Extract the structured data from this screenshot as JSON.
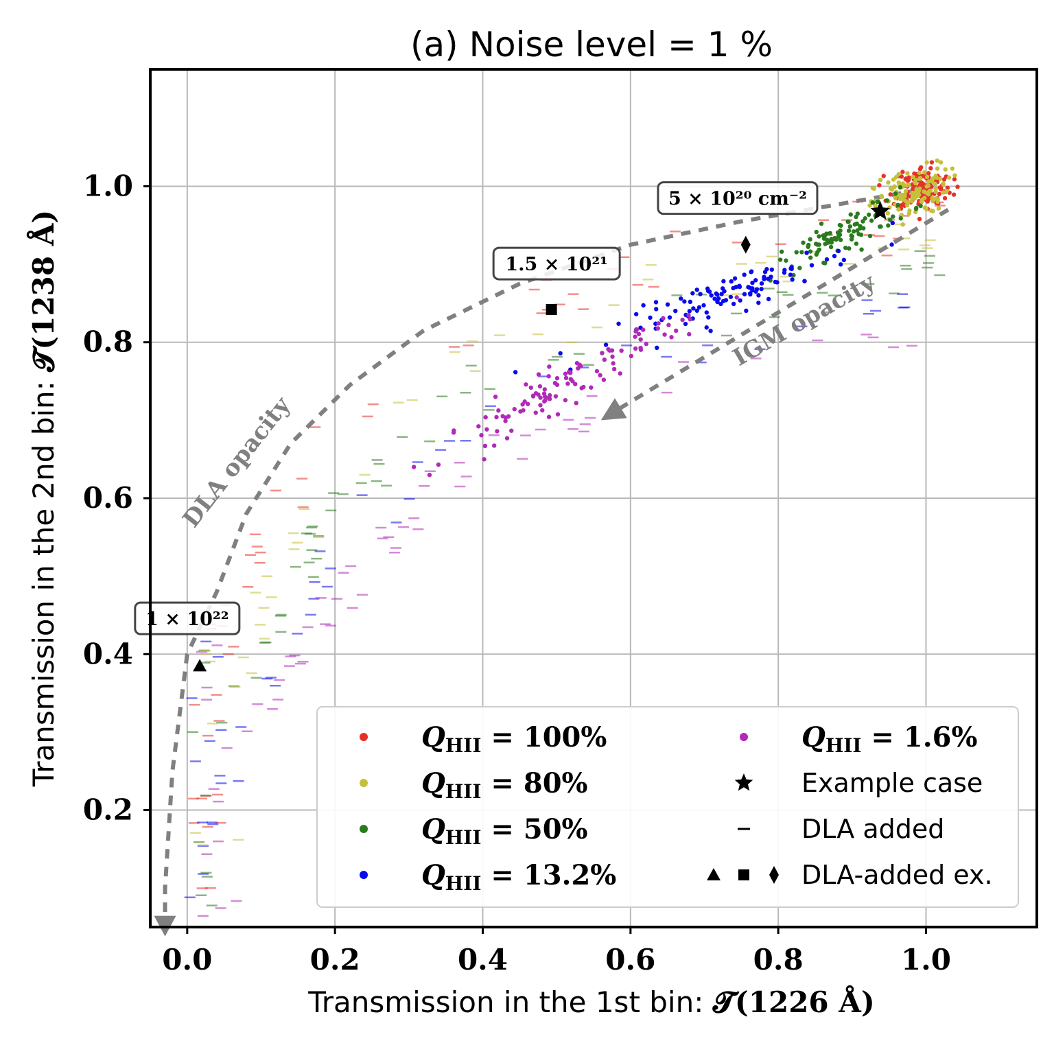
{
  "chart_data": {
    "type": "scatter",
    "title": "(a) Noise level = 1 %",
    "xlabel_text": "Transmission in the 1st bin: ",
    "xlabel_math": "𝓣(1226 Å)",
    "ylabel_text": "Transmission in the 2nd bin: ",
    "ylabel_math": "𝓣(1238 Å)",
    "xlim": [
      -0.05,
      1.15
    ],
    "ylim": [
      0.05,
      1.15
    ],
    "xticks": [
      0.0,
      0.2,
      0.4,
      0.6,
      0.8,
      1.0
    ],
    "xtick_labels": [
      "0.0",
      "0.2",
      "0.4",
      "0.6",
      "0.8",
      "1.0"
    ],
    "yticks": [
      0.2,
      0.4,
      0.6,
      0.8,
      1.0
    ],
    "ytick_labels": [
      "0.2",
      "0.4",
      "0.6",
      "0.8",
      "1.0"
    ],
    "grid": true,
    "legend_position": "lower-right",
    "legend": [
      {
        "marker": "dot",
        "label": "Q",
        "sub": "HII",
        "rest": " = 100%",
        "color": "#e8302a"
      },
      {
        "marker": "dot",
        "label": "Q",
        "sub": "HII",
        "rest": " = 80%",
        "color": "#c4c03a"
      },
      {
        "marker": "dot",
        "label": "Q",
        "sub": "HII",
        "rest": " = 50%",
        "color": "#2a7a1e"
      },
      {
        "marker": "dot",
        "label": "Q",
        "sub": "HII",
        "rest": " = 13.2%",
        "color": "#0a0aee"
      },
      {
        "marker": "dot",
        "label": "Q",
        "sub": "HII",
        "rest": " = 1.6%",
        "color": "#b02ab8"
      },
      {
        "marker": "star",
        "text": "Example case",
        "color": "#000000"
      },
      {
        "marker": "dash",
        "text": "DLA added",
        "color": "#000000"
      },
      {
        "marker": "triad",
        "text": "DLA-added ex.",
        "color": "#000000"
      }
    ],
    "series": [
      {
        "name": "Q_HII = 100%",
        "color": "#e8302a",
        "center": [
          0.995,
          0.998
        ],
        "spread": [
          0.02,
          0.014
        ],
        "n": 140,
        "tilt": 0.0
      },
      {
        "name": "Q_HII = 80%",
        "color": "#c4c03a",
        "center": [
          0.98,
          0.99
        ],
        "spread": [
          0.025,
          0.016
        ],
        "n": 120,
        "tilt": 0.3
      },
      {
        "name": "Q_HII = 50%",
        "color": "#2a7a1e",
        "center": [
          0.89,
          0.94
        ],
        "spread": [
          0.045,
          0.012
        ],
        "n": 100,
        "tilt": 0.45
      },
      {
        "name": "Q_HII = 13.2%",
        "color": "#0a0aee",
        "center": [
          0.745,
          0.865
        ],
        "spread": [
          0.08,
          0.012
        ],
        "n": 110,
        "tilt": 0.35
      },
      {
        "name": "Q_HII = 1.6%",
        "color": "#b02ab8",
        "center": [
          0.51,
          0.745
        ],
        "spread": [
          0.085,
          0.014
        ],
        "n": 110,
        "tilt": 0.5
      }
    ],
    "dla_dashes": {
      "n": 320,
      "colors": [
        "#e8302a",
        "#c4c03a",
        "#2a7a1e",
        "#0a0aee",
        "#b02ab8"
      ],
      "alpha": 0.55
    },
    "example_case": {
      "marker": "star",
      "x": 0.938,
      "y": 0.968
    },
    "dla_examples": [
      {
        "marker": "triangle",
        "x": 0.017,
        "y": 0.385
      },
      {
        "marker": "square",
        "x": 0.493,
        "y": 0.842
      },
      {
        "marker": "diamond",
        "x": 0.756,
        "y": 0.925
      }
    ],
    "column_density_labels": [
      {
        "text": "5 × 10²⁰ cm⁻²",
        "x": 0.745,
        "y": 0.984
      },
      {
        "text": "1.5 × 10²¹",
        "x": 0.5,
        "y": 0.9
      },
      {
        "text": "1 × 10²²",
        "x": 0.0,
        "y": 0.445
      }
    ],
    "arrow_annotations": [
      {
        "text": "DLA opacity",
        "x": 0.075,
        "y": 0.64,
        "rotation": -52
      },
      {
        "text": "IGM opacity",
        "x": 0.84,
        "y": 0.82,
        "rotation": -30
      }
    ],
    "dla_curve": [
      [
        0.99,
        0.995
      ],
      [
        0.9,
        0.98
      ],
      [
        0.75,
        0.955
      ],
      [
        0.6,
        0.925
      ],
      [
        0.45,
        0.875
      ],
      [
        0.32,
        0.815
      ],
      [
        0.22,
        0.745
      ],
      [
        0.14,
        0.67
      ],
      [
        0.08,
        0.58
      ],
      [
        0.04,
        0.48
      ],
      [
        0.0,
        0.4
      ],
      [
        -0.02,
        0.25
      ],
      [
        -0.03,
        0.1
      ],
      [
        -0.03,
        0.06
      ]
    ],
    "igm_arrow": {
      "from": [
        1.03,
        0.97
      ],
      "to": [
        0.56,
        0.7
      ]
    }
  }
}
